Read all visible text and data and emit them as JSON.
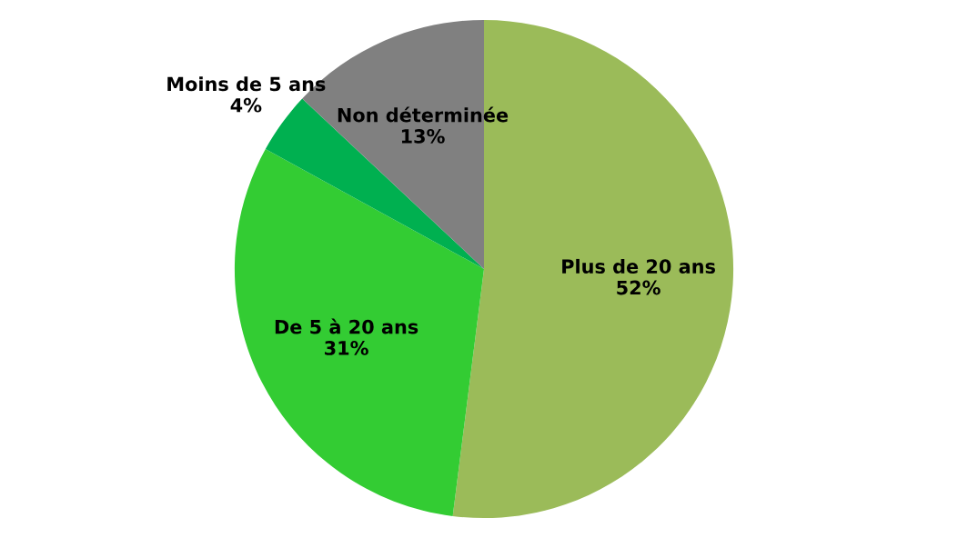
{
  "chart_data": {
    "type": "pie",
    "categories": [
      "Plus de 20 ans",
      "De 5 à 20 ans",
      "Moins de 5 ans",
      "Non déterminée"
    ],
    "values": [
      52,
      31,
      4,
      13
    ],
    "colors": [
      "#9bbb59",
      "#33cc33",
      "#00b050",
      "#808080"
    ],
    "value_labels": [
      "52%",
      "31%",
      "4%",
      "13%"
    ],
    "legend": false
  }
}
